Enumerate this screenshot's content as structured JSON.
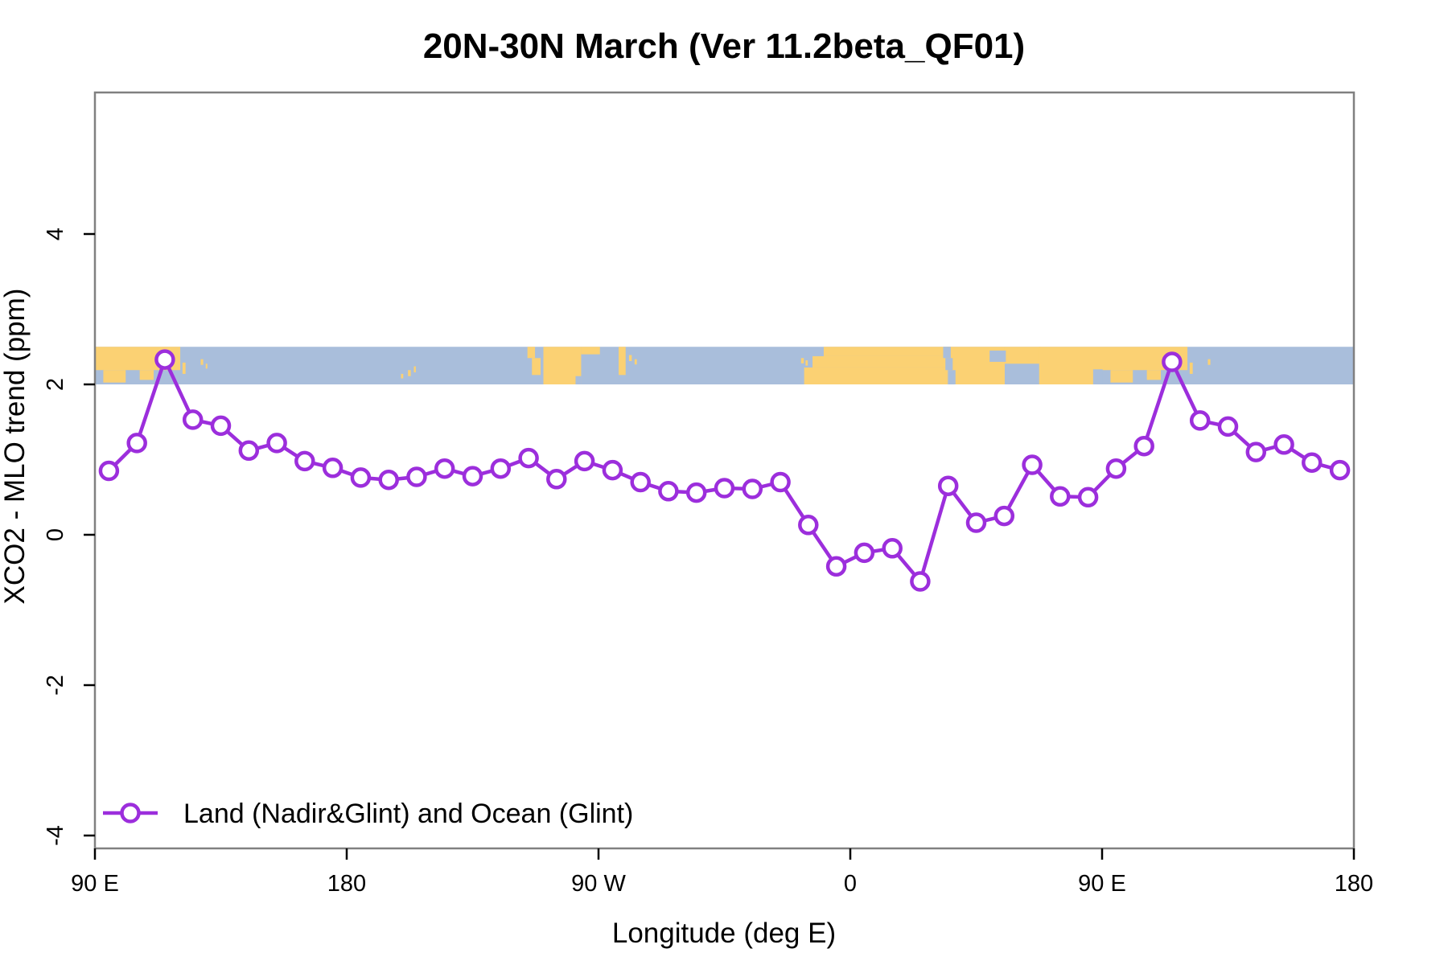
{
  "figure": {
    "background_color": "#ffffff",
    "box_color": "#808080",
    "tick_color": "#000000"
  },
  "chart_data": {
    "type": "line",
    "title": "20N-30N March (Ver 11.2beta_QF01)",
    "xlabel": "Longitude (deg E)",
    "ylabel": "XCO2 - MLO trend (ppm)",
    "x_axis_note": "longitude axis starts at 90E and spans 360 degrees eastward; x values >360 wrap around",
    "xlim_deg_east": [
      90,
      540
    ],
    "ylim": [
      -4.17,
      5.88
    ],
    "grid": false,
    "legend_position": "bottom-left inside plot",
    "x_ticks": [
      {
        "deg": 90,
        "label": "90 E"
      },
      {
        "deg": 180,
        "label": "180"
      },
      {
        "deg": 270,
        "label": "90 W"
      },
      {
        "deg": 360,
        "label": "0"
      },
      {
        "deg": 450,
        "label": "90 E"
      },
      {
        "deg": 540,
        "label": "180"
      }
    ],
    "y_ticks": [
      {
        "value": 4,
        "label": "4"
      },
      {
        "value": 2,
        "label": "2"
      },
      {
        "value": 0,
        "label": "0"
      },
      {
        "value": -2,
        "label": "-2"
      },
      {
        "value": -4,
        "label": "-4"
      }
    ],
    "series": [
      {
        "name": "Land (Nadir&Glint) and Ocean (Glint)",
        "color": "#9C2EDC",
        "marker": "open-circle",
        "x_deg_east": [
          95,
          105,
          115,
          125,
          135,
          145,
          155,
          165,
          175,
          185,
          195,
          205,
          215,
          225,
          235,
          245,
          255,
          265,
          275,
          285,
          295,
          305,
          315,
          325,
          335,
          345,
          355,
          365,
          375,
          385,
          395,
          405,
          415,
          425,
          435,
          445,
          455,
          465,
          475,
          485,
          495,
          505,
          515,
          525,
          535
        ],
        "values": [
          0.85,
          1.22,
          2.33,
          1.53,
          1.45,
          1.12,
          1.22,
          0.98,
          0.89,
          0.76,
          0.73,
          0.77,
          0.88,
          0.78,
          0.88,
          1.02,
          0.74,
          0.98,
          0.86,
          0.7,
          0.58,
          0.56,
          0.62,
          0.61,
          0.7,
          0.13,
          -0.42,
          -0.24,
          -0.18,
          -0.62,
          0.65,
          0.16,
          0.25,
          0.93,
          0.51,
          0.5,
          0.88,
          1.18,
          2.3,
          1.52,
          1.44,
          1.1,
          1.2,
          0.96,
          0.86
        ]
      }
    ],
    "map_band": {
      "description": "World coastline strip (20N-30N latitude band) drawn across the plot",
      "y_range_ppm": [
        2.0,
        2.5
      ],
      "ocean_color": "#A9BEDB",
      "land_color": "#FBD173",
      "land_rects_deg_fraction": [
        [
          90,
          120.5,
          0,
          0.62
        ],
        [
          93,
          101,
          0.62,
          0.95
        ],
        [
          106,
          111,
          0.62,
          0.88
        ],
        [
          121.3,
          122.4,
          0.42,
          0.72
        ],
        [
          127.8,
          128.7,
          0.33,
          0.48
        ],
        [
          129.6,
          130.2,
          0.45,
          0.58
        ],
        [
          199.4,
          200.2,
          0.72,
          0.84
        ],
        [
          201.9,
          202.9,
          0.62,
          0.78
        ],
        [
          204,
          204.7,
          0.52,
          0.68
        ],
        [
          244.6,
          247.3,
          0,
          0.3
        ],
        [
          246.2,
          249.3,
          0.3,
          0.75
        ],
        [
          250.3,
          263.8,
          0,
          1
        ],
        [
          263.8,
          270.5,
          0,
          0.2
        ],
        [
          277.2,
          279.7,
          0,
          0.75
        ],
        [
          280.9,
          281.9,
          0.22,
          0.38
        ],
        [
          282.9,
          283.7,
          0.33,
          0.47
        ],
        [
          342.4,
          343.4,
          0.3,
          0.44
        ],
        [
          344,
          344.8,
          0.36,
          0.5
        ],
        [
          343.5,
          394.6,
          0.55,
          1
        ],
        [
          346.5,
          395.4,
          0.25,
          0.55
        ],
        [
          350.5,
          395.4,
          0,
          0.25
        ],
        [
          394.6,
          415.2,
          0,
          1
        ],
        [
          415.2,
          428,
          0,
          0.45
        ],
        [
          427.5,
          450,
          0,
          1
        ],
        [
          450,
          480.5,
          0,
          0.62
        ],
        [
          453,
          461,
          0.62,
          0.95
        ],
        [
          466,
          471,
          0.62,
          0.88
        ],
        [
          481.3,
          482.4,
          0.42,
          0.72
        ],
        [
          487.8,
          488.7,
          0.33,
          0.48
        ]
      ],
      "water_rects_deg_fraction": [
        [
          261.8,
          263.8,
          0.78,
          1
        ],
        [
          393.2,
          395.9,
          0,
          0.3
        ],
        [
          394.0,
          396.6,
          0.3,
          0.62
        ],
        [
          394.9,
          397.6,
          0.62,
          1
        ],
        [
          409.8,
          415.6,
          0.1,
          0.4
        ],
        [
          446.8,
          450.2,
          0.6,
          1
        ]
      ]
    }
  }
}
